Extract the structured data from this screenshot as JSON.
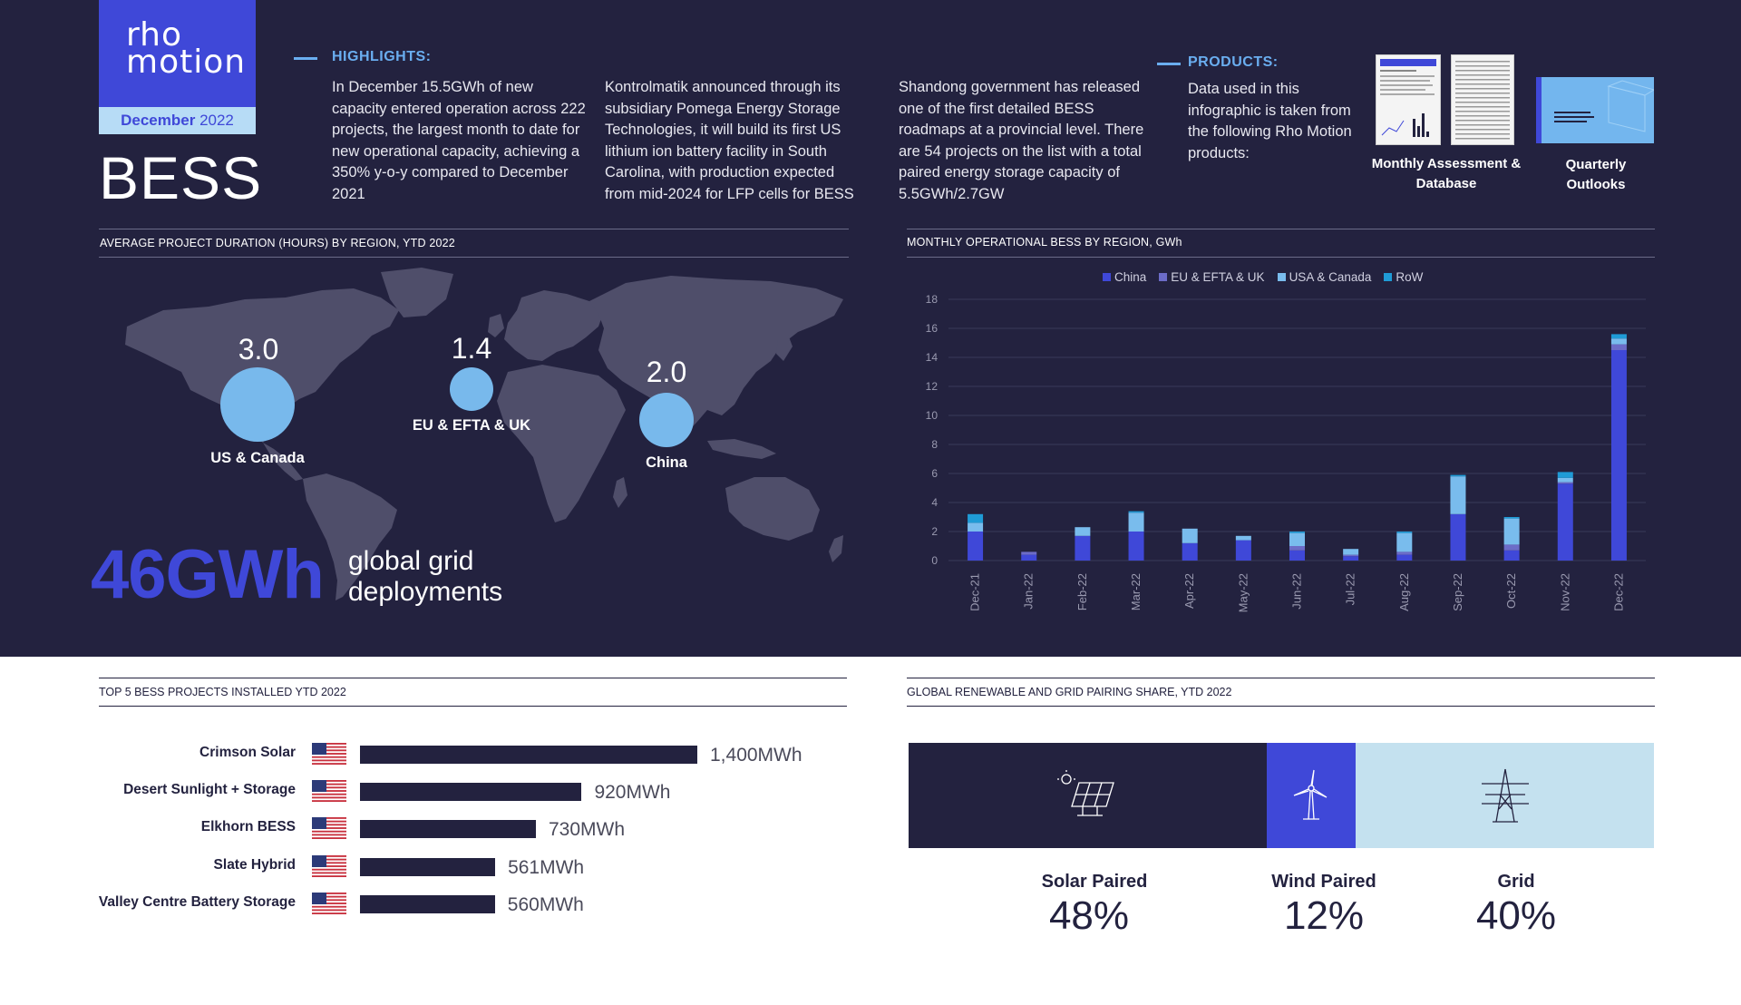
{
  "brand": {
    "logo_line1": "rho",
    "logo_line2": "motion",
    "month": "December",
    "year": "2022"
  },
  "title": "BESS",
  "highlights": {
    "heading": "HIGHLIGHTS:",
    "col1": "In December 15.5GWh of new capacity entered operation across 222 projects, the largest month to date for new operational capacity, achieving a 350% y-o-y compared to December 2021",
    "col2": "Kontrolmatik announced through its subsidiary Pomega Energy Storage Technologies, it will build its first US lithium ion battery facility in South Carolina, with production expected from mid-2024 for LFP cells for BESS",
    "col3": "Shandong government has released one of the first detailed BESS roadmaps at a provincial level. There are 54 projects on the list with a total paired energy storage capacity of 5.5GWh/2.7GW"
  },
  "products": {
    "heading": "PRODUCTS:",
    "text": "Data used in this infographic is taken from the following Rho Motion products:",
    "item1": "Monthly Assessment & Database",
    "item2": "Quarterly Outlooks"
  },
  "map_section": {
    "title": "AVERAGE PROJECT DURATION (HOURS) BY REGION, YTD 2022",
    "regions": [
      {
        "name": "US & Canada",
        "value": "3.0"
      },
      {
        "name": "EU & EFTA & UK",
        "value": "1.4"
      },
      {
        "name": "China",
        "value": "2.0"
      }
    ],
    "headline_value": "46GWh",
    "headline_text_1": "global grid",
    "headline_text_2": "deployments",
    "bubble_color": "#78b9ec",
    "map_color": "#4f4e6a"
  },
  "chart_data": [
    {
      "type": "bar",
      "stacked": true,
      "title": "MONTHLY OPERATIONAL BESS BY REGION, GWh",
      "categories": [
        "Dec-21",
        "Jan-22",
        "Feb-22",
        "Mar-22",
        "Apr-22",
        "May-22",
        "Jun-22",
        "Jul-22",
        "Aug-22",
        "Sep-22",
        "Oct-22",
        "Nov-22",
        "Dec-22"
      ],
      "series": [
        {
          "name": "China",
          "color": "#3f48d8",
          "values": [
            2.0,
            0.4,
            1.7,
            2.0,
            1.2,
            1.4,
            0.7,
            0.3,
            0.4,
            3.2,
            0.7,
            5.3,
            14.5
          ]
        },
        {
          "name": "EU & EFTA & UK",
          "color": "#6c6cc8",
          "values": [
            0.0,
            0.2,
            0.0,
            0.0,
            0.0,
            0.0,
            0.3,
            0.1,
            0.2,
            0.0,
            0.4,
            0.1,
            0.4
          ]
        },
        {
          "name": "USA & Canada",
          "color": "#79bced",
          "values": [
            0.6,
            0.0,
            0.6,
            1.3,
            1.0,
            0.3,
            0.9,
            0.4,
            1.3,
            2.6,
            1.8,
            0.3,
            0.4
          ]
        },
        {
          "name": "RoW",
          "color": "#1f9bd6",
          "values": [
            0.6,
            0.0,
            0.0,
            0.1,
            0.0,
            0.0,
            0.1,
            0.0,
            0.1,
            0.1,
            0.1,
            0.4,
            0.3
          ]
        }
      ],
      "ylim": [
        0,
        18
      ],
      "yticks": [
        0,
        2,
        4,
        6,
        8,
        10,
        12,
        14,
        16,
        18
      ],
      "grid": true,
      "legend": "top"
    }
  ],
  "top5": {
    "title": "TOP 5 BESS PROJECTS INSTALLED YTD 2022",
    "max": 1400,
    "projects": [
      {
        "name": "Crimson Solar",
        "value": 1400,
        "label": "1,400MWh"
      },
      {
        "name": "Desert Sunlight + Storage",
        "value": 920,
        "label": "920MWh"
      },
      {
        "name": "Elkhorn BESS",
        "value": 730,
        "label": "730MWh"
      },
      {
        "name": "Slate Hybrid",
        "value": 561,
        "label": "561MWh"
      },
      {
        "name": "Valley Centre Battery Storage",
        "value": 560,
        "label": "560MWh"
      }
    ]
  },
  "pairing": {
    "title": "GLOBAL RENEWABLE AND GRID PAIRING SHARE, YTD 2022",
    "segments": [
      {
        "name": "Solar Paired",
        "share": 48,
        "label": "48%",
        "color": "#23223f",
        "icon": "solar-panel-icon"
      },
      {
        "name": "Wind Paired",
        "share": 12,
        "label": "12%",
        "color": "#3f48d8",
        "icon": "wind-turbine-icon"
      },
      {
        "name": "Grid",
        "share": 40,
        "label": "40%",
        "color": "#c4e1ef",
        "icon": "pylon-icon"
      }
    ]
  }
}
